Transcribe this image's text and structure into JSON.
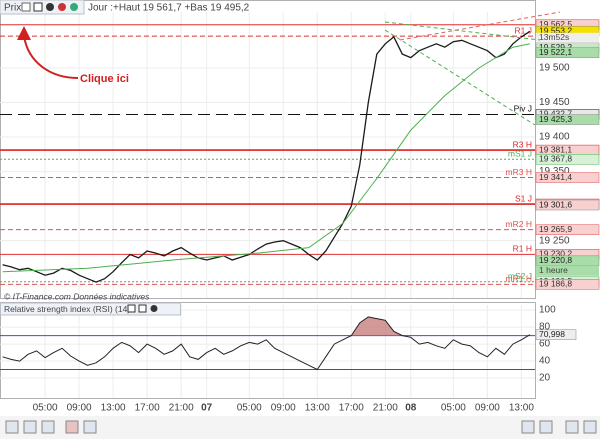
{
  "header": {
    "panel": "Prix",
    "info": "Jour :+Haut 19 561,7 +Bas 19 495,2",
    "annotation": "Clique ici",
    "footer": "© IT-Finance.com Données indicatives"
  },
  "chart_data": [
    {
      "type": "line",
      "xlim": [
        -0.3,
        62.6
      ],
      "ylim": [
        19167,
        19581
      ],
      "xticks": [
        {
          "value": 5,
          "label": "05:00"
        },
        {
          "value": 9,
          "label": "09:00"
        },
        {
          "value": 13,
          "label": "13:00"
        },
        {
          "value": 17,
          "label": "17:00"
        },
        {
          "value": 21,
          "label": "21:00"
        },
        {
          "value": 24,
          "label": "07"
        },
        {
          "value": 29,
          "label": "05:00"
        },
        {
          "value": 33,
          "label": "09:00"
        },
        {
          "value": 37,
          "label": "13:00"
        },
        {
          "value": 41,
          "label": "17:00"
        },
        {
          "value": 45,
          "label": "21:00"
        },
        {
          "value": 48,
          "label": "08"
        },
        {
          "value": 53,
          "label": "05:00"
        },
        {
          "value": 57,
          "label": "09:00"
        },
        {
          "value": 61,
          "label": "13:00"
        }
      ],
      "yticks": [
        {
          "value": 19500,
          "label": "19 500"
        },
        {
          "value": 19450,
          "label": "19 450"
        },
        {
          "value": 19400,
          "label": "19 400"
        },
        {
          "value": 19350,
          "label": "19 350"
        },
        {
          "value": 19250,
          "label": "19 250"
        }
      ],
      "grid": true,
      "series": [
        {
          "color": "#1a1a1a",
          "x": [
            0,
            1,
            2,
            3,
            4,
            5,
            6,
            7,
            8,
            9,
            10,
            11,
            12,
            13,
            14,
            15,
            16,
            17,
            18,
            19,
            20,
            21,
            22,
            23,
            24,
            25,
            26,
            27,
            28,
            29,
            30,
            31,
            32,
            33,
            34,
            35,
            36,
            37,
            38,
            39,
            40,
            41,
            42,
            43,
            44,
            45,
            46,
            47,
            48,
            49,
            50,
            51,
            52,
            53,
            54,
            55,
            56,
            57,
            58,
            59,
            60,
            61,
            62
          ],
          "values": [
            19215,
            19212,
            19208,
            19210,
            19205,
            19200,
            19203,
            19210,
            19207,
            19200,
            19195,
            19190,
            19195,
            19205,
            19218,
            19230,
            19225,
            19235,
            19232,
            19228,
            19235,
            19240,
            19232,
            19225,
            19222,
            19225,
            19228,
            19222,
            19226,
            19230,
            19238,
            19245,
            19248,
            19250,
            19245,
            19240,
            19230,
            19222,
            19235,
            19255,
            19275,
            19300,
            19360,
            19450,
            19520,
            19535,
            19545,
            19520,
            19515,
            19525,
            19530,
            19535,
            19530,
            19538,
            19540,
            19535,
            19530,
            19525,
            19515,
            19520,
            19535,
            19545,
            19553
          ]
        },
        {
          "color": "#4caf50",
          "x": [
            0,
            10,
            20,
            30,
            36,
            40,
            44,
            48,
            52,
            56,
            60,
            62
          ],
          "values": [
            19205,
            19210,
            19222,
            19232,
            19240,
            19275,
            19340,
            19410,
            19460,
            19500,
            19530,
            19535
          ]
        }
      ],
      "levels": [
        {
          "value": 19562.5,
          "value_label": "19 562,5",
          "color": "#e03030",
          "style": "solid",
          "box": "#f8d0d0"
        },
        {
          "name": "R1 J",
          "value": 19546,
          "color": "#e03030",
          "style": "dashed"
        },
        {
          "name": "Piv J",
          "value": 19432.7,
          "value_label": "19 432,7",
          "color": "#111111",
          "style": "bigdash",
          "box": "#e8e8e8"
        },
        {
          "name": "R3 H",
          "value": 19381.1,
          "value_label": "19 381,1",
          "color": "#e02020",
          "style": "bold",
          "box": "#f8d0d0"
        },
        {
          "name": "mS1 J",
          "value": 19367.8,
          "value_label": "19 367,8",
          "color": "#4caf50",
          "style": "dotted",
          "box": "#d8efd8"
        },
        {
          "name": "mR3 H",
          "value": 19341.4,
          "value_label": "19 341,4",
          "color": "#e05050",
          "style": "dashed",
          "box": "#f8d0d0"
        },
        {
          "name": "S1 J",
          "value": 19303.0,
          "value_label": "19 303,0",
          "color": "#e02020",
          "style": "bold",
          "box": "#f8d0d0"
        },
        {
          "name": "mR2 H",
          "value": 19265.9,
          "value_label": "19 265,9",
          "color": "#e05050",
          "style": "dashed",
          "box": "#f8d0d0"
        },
        {
          "name": "R1 H",
          "value": 19230.2,
          "value_label": "19 230,2",
          "color": "#e03030",
          "style": "solid",
          "box": "#f8d0d0"
        },
        {
          "name": "mS2 J",
          "value": 19190.5,
          "value_label": "19 190,5",
          "color": "#4caf50",
          "style": "dotted",
          "box": "#d8efd8"
        },
        {
          "name": "mR1 H",
          "value": 19186.8,
          "value_label": "19 186,8",
          "color": "#e05050",
          "style": "dashed",
          "box": "#f8d0d0"
        }
      ],
      "tags": [
        {
          "value": 19553.2,
          "value_label": "19 553,2",
          "box": "#f5e000"
        },
        {
          "value": 19529.2,
          "value_label": "19 529,2",
          "box": "#c8e8c8"
        },
        {
          "value": 19522.1,
          "value_label": "19 522,1",
          "box": "#a8dca8"
        },
        {
          "value": 19425.3,
          "value_label": "19 425,3",
          "box": "#a8dca8"
        },
        {
          "value": 19301.6,
          "value_label": "19 301,6",
          "box": "#f8d0d0"
        },
        {
          "value": 19220.8,
          "value_label": "19 220,8",
          "box": "#a8dca8"
        }
      ],
      "countdown": "13m52s",
      "period": "1 heure"
    },
    {
      "type": "line",
      "title": "Relative strength index (RSI) (14)",
      "xlim": [
        -0.3,
        62.6
      ],
      "ylim": [
        -3.5,
        106
      ],
      "yticks": [
        20,
        40,
        60,
        80,
        100
      ],
      "levels": [
        70,
        30
      ],
      "series": [
        {
          "color": "#222222",
          "x": [
            0,
            1,
            2,
            3,
            4,
            5,
            6,
            7,
            8,
            9,
            10,
            11,
            12,
            13,
            14,
            15,
            16,
            17,
            18,
            19,
            20,
            21,
            22,
            23,
            24,
            25,
            26,
            27,
            28,
            29,
            30,
            31,
            32,
            33,
            34,
            35,
            36,
            37,
            38,
            39,
            40,
            41,
            42,
            43,
            44,
            45,
            46,
            47,
            48,
            49,
            50,
            51,
            52,
            53,
            54,
            55,
            56,
            57,
            58,
            59,
            60,
            61,
            62
          ],
          "values": [
            45,
            42,
            40,
            48,
            52,
            44,
            50,
            55,
            46,
            40,
            35,
            38,
            45,
            55,
            62,
            58,
            50,
            60,
            55,
            48,
            52,
            60,
            45,
            42,
            50,
            55,
            48,
            52,
            58,
            62,
            60,
            65,
            55,
            50,
            45,
            40,
            35,
            30,
            45,
            60,
            65,
            70,
            85,
            92,
            90,
            88,
            75,
            70,
            68,
            60,
            62,
            58,
            55,
            65,
            60,
            58,
            50,
            45,
            55,
            48,
            60,
            65,
            71
          ]
        }
      ],
      "last": 70.998,
      "last_label": "70,998"
    }
  ]
}
